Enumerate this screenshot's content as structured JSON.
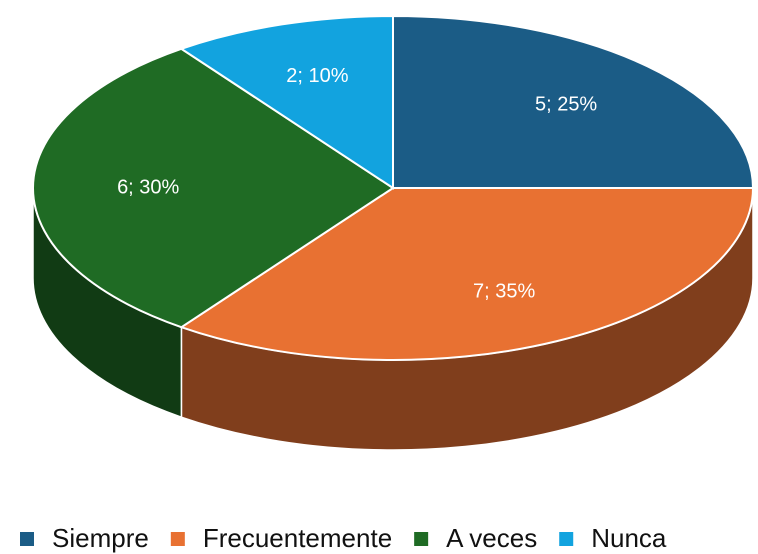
{
  "chart_data": {
    "type": "pie",
    "categories": [
      "Siempre",
      "Frecuentemente",
      "A veces",
      "Nunca"
    ],
    "values": [
      5,
      7,
      6,
      2
    ],
    "value_labels": [
      "5; 25%",
      "7; 35%",
      "6; 30%",
      "2; 10%"
    ],
    "colors": [
      "#1b5c86",
      "#e87132",
      "#1f6b24",
      "#12a3df"
    ],
    "legend": "bottom"
  }
}
